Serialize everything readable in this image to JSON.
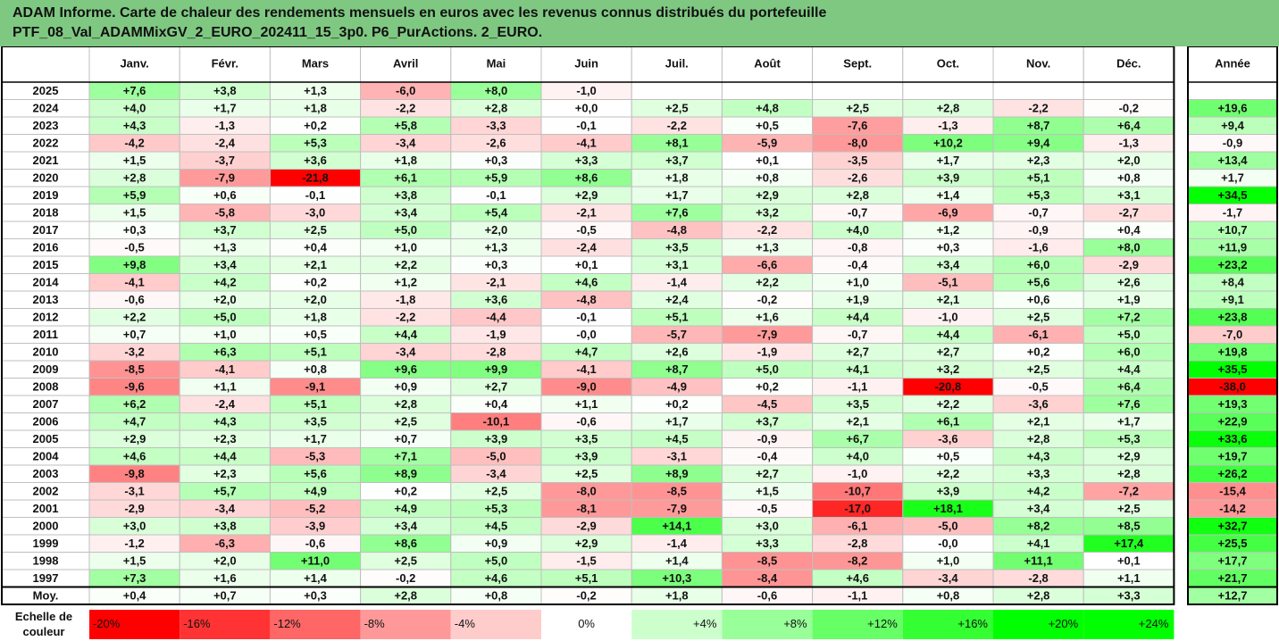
{
  "report": {
    "title_line1": "ADAM Informe. Carte de chaleur des rendements mensuels en euros avec les revenus connus distribués du portefeuille",
    "title_line2": "PTF_08_Val_ADAMMixGV_2_EURO_202411_15_3p0. P6_PurActions. 2_EURO."
  },
  "colors": {
    "title_band": "#7fc882",
    "negative_max": "#ff0000",
    "positive_max": "#00ff00",
    "neutral": "#ffffff",
    "grid": "#bfbfbf",
    "frame": "#000000"
  },
  "chart_data": {
    "type": "heatmap",
    "columns": [
      "Janv.",
      "Févr.",
      "Mars",
      "Avril",
      "Mai",
      "Juin",
      "Juil.",
      "Août",
      "Sept.",
      "Oct.",
      "Nov.",
      "Déc."
    ],
    "year_column": "Année",
    "rows": [
      {
        "year": "2025",
        "months": [
          "+7,6",
          "+3,8",
          "+1,3",
          "-6,0",
          "+8,0",
          "-1,0",
          "",
          "",
          "",
          "",
          "",
          ""
        ],
        "annual": ""
      },
      {
        "year": "2024",
        "months": [
          "+4,0",
          "+1,7",
          "+1,8",
          "-2,2",
          "+2,8",
          "+0,0",
          "+2,5",
          "+4,8",
          "+2,5",
          "+2,8",
          "-2,2",
          "-0,2"
        ],
        "annual": "+19,6"
      },
      {
        "year": "2023",
        "months": [
          "+4,3",
          "-1,3",
          "+0,2",
          "+5,8",
          "-3,3",
          "-0,1",
          "-2,2",
          "+0,5",
          "-7,6",
          "-1,3",
          "+8,7",
          "+6,4"
        ],
        "annual": "+9,4"
      },
      {
        "year": "2022",
        "months": [
          "-4,2",
          "-2,4",
          "+5,3",
          "-3,4",
          "-2,6",
          "-4,1",
          "+8,1",
          "-5,9",
          "-8,0",
          "+10,2",
          "+9,4",
          "-1,3"
        ],
        "annual": "-0,9"
      },
      {
        "year": "2021",
        "months": [
          "+1,5",
          "-3,7",
          "+3,6",
          "+1,8",
          "+0,3",
          "+3,3",
          "+3,7",
          "+0,1",
          "-3,5",
          "+1,7",
          "+2,3",
          "+2,0"
        ],
        "annual": "+13,4"
      },
      {
        "year": "2020",
        "months": [
          "+2,8",
          "-7,9",
          "-21,8",
          "+6,1",
          "+5,9",
          "+8,6",
          "+1,8",
          "+0,8",
          "-2,6",
          "+3,9",
          "+5,1",
          "+0,8"
        ],
        "annual": "+1,7"
      },
      {
        "year": "2019",
        "months": [
          "+5,9",
          "+0,6",
          "-0,1",
          "+3,8",
          "-0,1",
          "+2,9",
          "+1,7",
          "+2,9",
          "+2,8",
          "+1,4",
          "+5,3",
          "+3,1"
        ],
        "annual": "+34,5"
      },
      {
        "year": "2018",
        "months": [
          "+1,5",
          "-5,8",
          "-3,0",
          "+3,4",
          "+5,4",
          "-2,1",
          "+7,6",
          "+3,2",
          "-0,7",
          "-6,9",
          "-0,7",
          "-2,7"
        ],
        "annual": "-1,7"
      },
      {
        "year": "2017",
        "months": [
          "+0,3",
          "+3,7",
          "+2,5",
          "+5,0",
          "+2,0",
          "-0,5",
          "-4,8",
          "-2,2",
          "+4,0",
          "+1,2",
          "-0,9",
          "+0,4"
        ],
        "annual": "+10,7"
      },
      {
        "year": "2016",
        "months": [
          "-0,5",
          "+1,3",
          "+0,4",
          "+1,0",
          "+1,3",
          "-2,4",
          "+3,5",
          "+1,3",
          "-0,8",
          "+0,3",
          "-1,6",
          "+8,0"
        ],
        "annual": "+11,9"
      },
      {
        "year": "2015",
        "months": [
          "+9,8",
          "+3,4",
          "+2,1",
          "+2,2",
          "+0,3",
          "+0,1",
          "+3,1",
          "-6,6",
          "-0,4",
          "+3,4",
          "+6,0",
          "-2,9"
        ],
        "annual": "+23,2"
      },
      {
        "year": "2014",
        "months": [
          "-4,1",
          "+4,2",
          "+0,2",
          "+1,2",
          "-2,1",
          "+4,6",
          "-1,4",
          "+2,2",
          "+1,0",
          "-5,1",
          "+5,6",
          "+2,6"
        ],
        "annual": "+8,4"
      },
      {
        "year": "2013",
        "months": [
          "-0,6",
          "+2,0",
          "+2,0",
          "-1,8",
          "+3,6",
          "-4,8",
          "+2,4",
          "-0,2",
          "+1,9",
          "+2,1",
          "+0,6",
          "+1,9"
        ],
        "annual": "+9,1"
      },
      {
        "year": "2012",
        "months": [
          "+2,2",
          "+5,0",
          "+1,8",
          "-2,2",
          "-4,4",
          "-0,1",
          "+5,1",
          "+1,6",
          "+4,4",
          "-1,0",
          "+2,5",
          "+7,2"
        ],
        "annual": "+23,8"
      },
      {
        "year": "2011",
        "months": [
          "+0,7",
          "+1,0",
          "+0,5",
          "+4,4",
          "-1,9",
          "-0,0",
          "-5,7",
          "-7,9",
          "-0,7",
          "+4,4",
          "-6,1",
          "+5,0"
        ],
        "annual": "-7,0"
      },
      {
        "year": "2010",
        "months": [
          "-3,2",
          "+6,3",
          "+5,1",
          "-3,4",
          "-2,8",
          "+4,7",
          "+2,6",
          "-1,9",
          "+2,7",
          "+2,7",
          "+0,2",
          "+6,0"
        ],
        "annual": "+19,8"
      },
      {
        "year": "2009",
        "months": [
          "-8,5",
          "-4,1",
          "+0,8",
          "+9,6",
          "+9,9",
          "-4,1",
          "+8,7",
          "+5,0",
          "+4,1",
          "+3,2",
          "+2,5",
          "+4,4"
        ],
        "annual": "+35,5"
      },
      {
        "year": "2008",
        "months": [
          "-9,6",
          "+1,1",
          "-9,1",
          "+0,9",
          "+2,7",
          "-9,0",
          "-4,9",
          "+0,2",
          "-1,1",
          "-20,8",
          "-0,5",
          "+6,4"
        ],
        "annual": "-38,0"
      },
      {
        "year": "2007",
        "months": [
          "+6,2",
          "-2,4",
          "+5,1",
          "+2,8",
          "+0,4",
          "+1,1",
          "+0,2",
          "-4,5",
          "+3,5",
          "+2,2",
          "-3,6",
          "+7,6"
        ],
        "annual": "+19,3"
      },
      {
        "year": "2006",
        "months": [
          "+4,7",
          "+4,3",
          "+3,5",
          "+2,5",
          "-10,1",
          "-0,6",
          "+1,7",
          "+3,7",
          "+2,1",
          "+6,1",
          "+2,1",
          "+1,7"
        ],
        "annual": "+22,9"
      },
      {
        "year": "2005",
        "months": [
          "+2,9",
          "+2,3",
          "+1,7",
          "+0,7",
          "+3,9",
          "+3,5",
          "+4,5",
          "-0,9",
          "+6,7",
          "-3,6",
          "+2,8",
          "+5,3"
        ],
        "annual": "+33,6"
      },
      {
        "year": "2004",
        "months": [
          "+4,6",
          "+4,4",
          "-5,3",
          "+7,1",
          "-5,0",
          "+3,9",
          "-3,1",
          "-0,4",
          "+4,0",
          "+0,5",
          "+4,3",
          "+2,9"
        ],
        "annual": "+19,7"
      },
      {
        "year": "2003",
        "months": [
          "-9,8",
          "+2,3",
          "+5,6",
          "+8,9",
          "-3,4",
          "+2,5",
          "+8,9",
          "+2,7",
          "-1,0",
          "+2,2",
          "+3,3",
          "+2,8"
        ],
        "annual": "+26,2"
      },
      {
        "year": "2002",
        "months": [
          "-3,1",
          "+5,7",
          "+4,9",
          "+0,2",
          "+2,5",
          "-8,0",
          "-8,5",
          "+1,5",
          "-10,7",
          "+3,9",
          "+4,2",
          "-7,2"
        ],
        "annual": "-15,4"
      },
      {
        "year": "2001",
        "months": [
          "-2,9",
          "-3,4",
          "-5,2",
          "+4,9",
          "+5,3",
          "-8,1",
          "-7,9",
          "-0,5",
          "-17,0",
          "+18,1",
          "+3,4",
          "+2,5"
        ],
        "annual": "-14,2"
      },
      {
        "year": "2000",
        "months": [
          "+3,0",
          "+3,8",
          "-3,9",
          "+3,4",
          "+4,5",
          "-2,9",
          "+14,1",
          "+3,0",
          "-6,1",
          "-5,0",
          "+8,2",
          "+8,5"
        ],
        "annual": "+32,7"
      },
      {
        "year": "1999",
        "months": [
          "-1,2",
          "-6,3",
          "-0,6",
          "+8,6",
          "+0,9",
          "+2,9",
          "-1,4",
          "+3,3",
          "-2,8",
          "-0,0",
          "+4,1",
          "+17,4"
        ],
        "annual": "+25,5"
      },
      {
        "year": "1998",
        "months": [
          "+1,5",
          "+2,0",
          "+11,0",
          "+2,5",
          "+5,0",
          "-1,5",
          "+1,4",
          "-8,5",
          "-8,2",
          "+1,0",
          "+11,1",
          "+0,1"
        ],
        "annual": "+17,7"
      },
      {
        "year": "1997",
        "months": [
          "+7,3",
          "+1,6",
          "+1,4",
          "-0,2",
          "+4,6",
          "+5,1",
          "+10,3",
          "-8,4",
          "+4,6",
          "-3,4",
          "-2,8",
          "+1,1"
        ],
        "annual": "+21,7"
      }
    ],
    "average": {
      "label": "Moy.",
      "months": [
        "+0,4",
        "+0,7",
        "+0,3",
        "+2,8",
        "+0,8",
        "-0,2",
        "+1,8",
        "-0,6",
        "-1,1",
        "+0,8",
        "+2,8",
        "+3,3"
      ],
      "annual": "+12,7"
    },
    "scale": {
      "label_line1": "Echelle de",
      "label_line2": "couleur",
      "steps": [
        {
          "label": "-20%",
          "value": -20
        },
        {
          "label": "-16%",
          "value": -16
        },
        {
          "label": "-12%",
          "value": -12
        },
        {
          "label": "-8%",
          "value": -8
        },
        {
          "label": "-4%",
          "value": -4
        },
        {
          "label": "0%",
          "value": 0
        },
        {
          "label": "+4%",
          "value": 4
        },
        {
          "label": "+8%",
          "value": 8
        },
        {
          "label": "+12%",
          "value": 12
        },
        {
          "label": "+16%",
          "value": 16
        },
        {
          "label": "+20%",
          "value": 20
        },
        {
          "label": "+24%",
          "value": 24
        }
      ]
    },
    "color_saturation_monthly": 20,
    "color_saturation_annual": 35
  }
}
